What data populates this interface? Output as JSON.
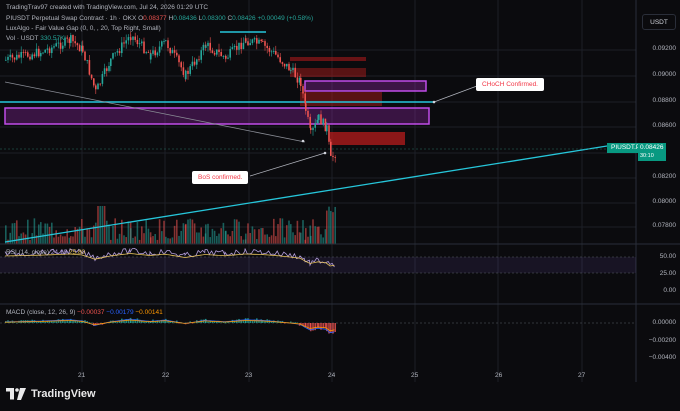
{
  "header": {
    "creator_line": "TradingTrav97 created with TradingView.com, Jul 24, 2026 01:29 UTC",
    "symbol_line": "PIUSDT Perpetual Swap Contract · 1h · OKX",
    "ohlc": {
      "o_label": "O",
      "o": "0.08377",
      "h_label": "H",
      "h": "0.08436",
      "l_label": "L",
      "l": "0.08300",
      "c_label": "C",
      "c": "0.08426",
      "change": "+0.00049 (+0.58%)"
    },
    "indicator_line": "LuxAlgo - Fair Value Gap (0, 0, , 20, Top Right, Small)",
    "vol_label": "Vol · USDT",
    "vol_value": "330.57K"
  },
  "currency_button": "USDT",
  "price_axis": [
    "0.09200",
    "0.09000",
    "0.08800",
    "0.08600",
    "0.08200",
    "0.08000",
    "0.07800"
  ],
  "current_price": {
    "symbol": "PIUSDT.P",
    "value": "0.08426",
    "countdown": "30:10"
  },
  "annotations": {
    "choch": "CHoCH Confirmed.",
    "bos": "BoS confirmed."
  },
  "rsi": {
    "label": "RSI (14, close)",
    "value1": "24.19",
    "value2": "25.80",
    "axis": [
      "50.00",
      "25.00",
      "0.00"
    ]
  },
  "macd": {
    "label": "MACD (close, 12, 26, 9)",
    "v1": "−0.00037",
    "v2": "−0.00179",
    "v3": "−0.00141",
    "axis": [
      "0.00000",
      "−0.00200",
      "−0.00400"
    ]
  },
  "time_axis": [
    "21",
    "22",
    "23",
    "24",
    "25",
    "26",
    "27"
  ],
  "brand": "TradingView",
  "colors": {
    "bull": "#26a69a",
    "bear": "#ef5350",
    "fvg_purple": "#9c27b0",
    "line_cyan": "#26c6da"
  }
}
